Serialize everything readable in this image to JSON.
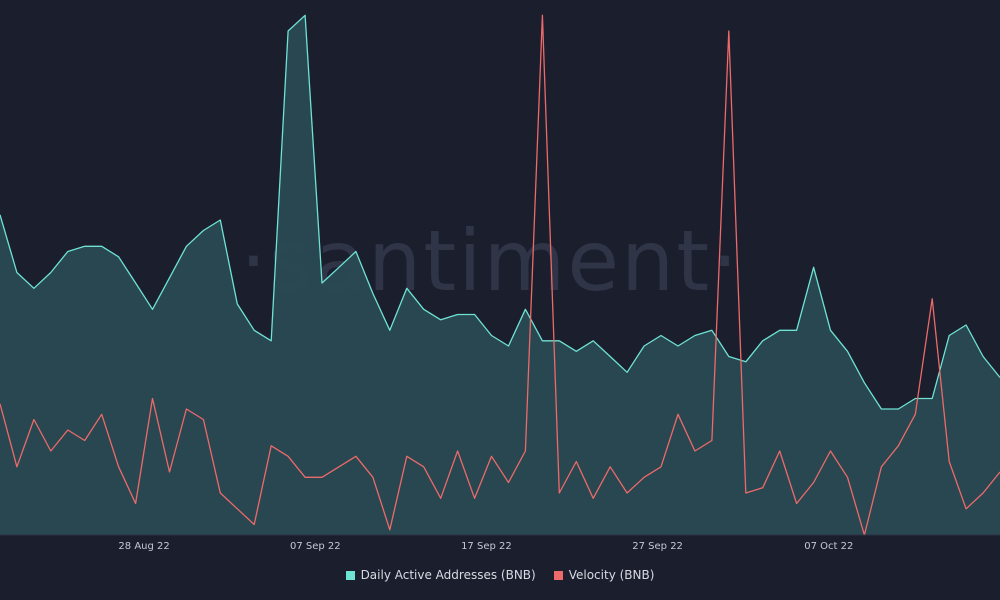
{
  "chart_data": {
    "type": "area",
    "watermark": "·santiment·",
    "x_tick_labels": [
      "28 Aug 22",
      "07 Sep 22",
      "17 Sep 22",
      "27 Sep 22",
      "07 Oct 22"
    ],
    "series": [
      {
        "name": "Daily Active Addresses (BNB)",
        "color": "#6ee3d4",
        "fill": "#2a4a52",
        "y_range": [
          0,
          100
        ],
        "values": [
          61,
          50,
          47,
          50,
          54,
          55,
          55,
          53,
          48,
          43,
          49,
          55,
          58,
          60,
          44,
          39,
          37,
          96,
          99,
          48,
          51,
          54,
          46,
          39,
          47,
          43,
          41,
          42,
          42,
          38,
          36,
          43,
          37,
          37,
          35,
          37,
          34,
          31,
          36,
          38,
          36,
          38,
          39,
          34,
          33,
          37,
          39,
          39,
          51,
          39,
          35,
          29,
          24,
          24,
          26,
          26,
          38,
          40,
          34,
          30
        ]
      },
      {
        "name": "Velocity (BNB)",
        "color": "#ec6a6a",
        "fill": "#2a4a52",
        "y_range": [
          0,
          100
        ],
        "values": [
          25,
          13,
          22,
          16,
          20,
          18,
          23,
          13,
          6,
          26,
          12,
          24,
          22,
          8,
          5,
          2,
          17,
          15,
          11,
          11,
          13,
          15,
          11,
          1,
          15,
          13,
          7,
          16,
          7,
          15,
          10,
          16,
          99,
          8,
          14,
          7,
          13,
          8,
          11,
          13,
          23,
          16,
          18,
          96,
          8,
          9,
          16,
          6,
          10,
          16,
          11,
          0,
          13,
          17,
          23,
          45,
          14,
          5,
          8,
          12
        ]
      }
    ]
  },
  "legend": {
    "items": [
      {
        "label": "Daily Active Addresses (BNB)",
        "color": "#6ee3d4"
      },
      {
        "label": "Velocity (BNB)",
        "color": "#ec6a6a"
      }
    ]
  }
}
